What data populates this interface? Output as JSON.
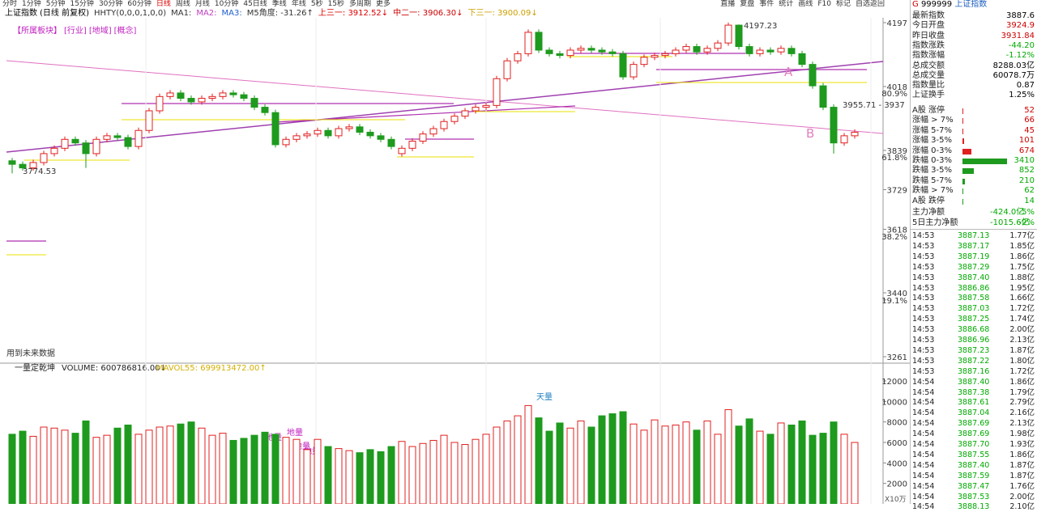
{
  "toolbar": {
    "left": [
      "分时",
      "1分钟",
      "5分钟",
      "15分钟",
      "30分钟",
      "60分钟",
      "日线",
      "周线",
      "月线",
      "10分钟",
      "45日线",
      "季线",
      "年线",
      "5秒",
      "15秒",
      "多周期",
      "更多"
    ],
    "right": [
      "直播",
      "复盘",
      "事件",
      "统计",
      "画线",
      "F10",
      "标记",
      "自选返回"
    ]
  },
  "header": {
    "title": "上证指数",
    "mode": "(日线 前复权)",
    "indicators": [
      "HHTY(0,0,0,1,0,0)",
      "MA1:",
      "MA2:",
      "MA3:",
      "M5角度: -31.26↑",
      "上三一: 3912.52↓",
      "中二一: 3906.30↓",
      "下三一: 3900.09↓"
    ]
  },
  "sector_links": [
    "【所属板块】",
    "[行业]",
    "[地域]",
    "[概念]"
  ],
  "future_note": "用到未来数据",
  "price_chart": {
    "type": "candlestick",
    "up_color": "#e02020",
    "down_color": "#1e9a1e",
    "ylim": [
      3261,
      4197
    ],
    "yticks": [
      4197,
      4018,
      3839,
      3729,
      3618,
      3440,
      3261
    ],
    "pct_ticks": [
      {
        "value": 4000,
        "label": "80.9%"
      },
      {
        "value": 3821,
        "label": "61.8%"
      },
      {
        "value": 3599,
        "label": "38.2%"
      },
      {
        "value": 3420,
        "label": "19.1%"
      }
    ],
    "open": [
      3810,
      3800,
      3790,
      3805,
      3830,
      3845,
      3870,
      3860,
      3830,
      3870,
      3880,
      3875,
      3850,
      3895,
      3950,
      3990,
      4000,
      3985,
      3975,
      3985,
      3990,
      4000,
      3995,
      3985,
      3960,
      3945,
      3855,
      3870,
      3880,
      3885,
      3895,
      3880,
      3900,
      3905,
      3890,
      3880,
      3870,
      3830,
      3845,
      3865,
      3885,
      3900,
      3920,
      3935,
      3950,
      3960,
      3965,
      4040,
      4090,
      4110,
      4170,
      4120,
      4110,
      4105,
      4120,
      4125,
      4120,
      4115,
      4110,
      4045,
      4080,
      4100,
      4105,
      4110,
      4120,
      4130,
      4115,
      4125,
      4140,
      4190,
      4130,
      4110,
      4120,
      4115,
      4125,
      4110,
      4080,
      4020,
      3960,
      3860,
      3880
    ],
    "high": [
      3818,
      3808,
      3813,
      3838,
      3853,
      3878,
      3878,
      3868,
      3878,
      3888,
      3888,
      3883,
      3903,
      3958,
      3998,
      4008,
      4008,
      3993,
      3993,
      3998,
      4008,
      4008,
      4003,
      3993,
      3968,
      3953,
      3878,
      3888,
      3893,
      3903,
      3903,
      3908,
      3913,
      3913,
      3898,
      3888,
      3878,
      3853,
      3873,
      3893,
      3908,
      3928,
      3943,
      3958,
      3968,
      3973,
      4048,
      4098,
      4118,
      4178,
      4178,
      4128,
      4118,
      4128,
      4133,
      4133,
      4128,
      4123,
      4118,
      4088,
      4108,
      4113,
      4118,
      4128,
      4138,
      4138,
      4133,
      4148,
      4197.23,
      4192,
      4138,
      4128,
      4128,
      4133,
      4133,
      4118,
      4088,
      4028,
      3968,
      3888,
      3898
    ],
    "low": [
      3774.53,
      3782,
      3782,
      3797,
      3822,
      3837,
      3852,
      3790,
      3822,
      3862,
      3867,
      3842,
      3842,
      3887,
      3942,
      3982,
      3977,
      3967,
      3967,
      3977,
      3982,
      3987,
      3977,
      3952,
      3937,
      3847,
      3847,
      3862,
      3872,
      3877,
      3872,
      3872,
      3892,
      3882,
      3872,
      3862,
      3842,
      3822,
      3837,
      3857,
      3877,
      3892,
      3912,
      3927,
      3942,
      3952,
      3957,
      4032,
      4082,
      4102,
      4112,
      4102,
      4097,
      4097,
      4112,
      4112,
      4107,
      4102,
      4037,
      4037,
      4072,
      4092,
      4097,
      4102,
      4112,
      4107,
      4107,
      4117,
      4132,
      4122,
      4102,
      4102,
      4107,
      4107,
      4102,
      4072,
      4012,
      3952,
      3830,
      3852,
      3872
    ],
    "close": [
      3800,
      3790,
      3805,
      3830,
      3845,
      3870,
      3860,
      3830,
      3870,
      3880,
      3875,
      3850,
      3895,
      3950,
      3990,
      4000,
      3985,
      3975,
      3985,
      3990,
      4000,
      3995,
      3985,
      3960,
      3945,
      3855,
      3870,
      3880,
      3885,
      3895,
      3880,
      3900,
      3905,
      3890,
      3880,
      3870,
      3850,
      3845,
      3865,
      3885,
      3900,
      3920,
      3935,
      3950,
      3960,
      3965,
      4040,
      4090,
      4110,
      4170,
      4120,
      4110,
      4105,
      4120,
      4125,
      4120,
      4115,
      4110,
      4045,
      4080,
      4100,
      4105,
      4110,
      4120,
      4130,
      4115,
      4125,
      4140,
      4190,
      4130,
      4110,
      4120,
      4115,
      4125,
      4110,
      4080,
      4020,
      3960,
      3860,
      3880,
      3890
    ],
    "annotations": {
      "high": "4197.23",
      "low": "3774.53",
      "range": "3955.71 - 3937",
      "a": "A",
      "b": "B"
    }
  },
  "volume_chart": {
    "type": "bar",
    "title": "一量定乾坤",
    "volume_label": "VOLUME: 600786816.00↓",
    "mavol_label": "MAVOL55: 699913472.00↑",
    "unit": "X10万",
    "ylim": [
      0,
      12000
    ],
    "yticks": [
      2000,
      4000,
      6000,
      8000,
      10000,
      12000
    ],
    "values": [
      6800,
      7100,
      6600,
      7500,
      7400,
      7200,
      6900,
      8100,
      6500,
      6700,
      7400,
      7700,
      6800,
      7200,
      7500,
      7600,
      7800,
      8000,
      7400,
      6700,
      6900,
      6200,
      6400,
      6700,
      7000,
      6800,
      6500,
      6300,
      5300,
      6300,
      5600,
      5400,
      5200,
      5000,
      5300,
      5100,
      5600,
      6100,
      5600,
      5900,
      6200,
      6700,
      6000,
      5800,
      6300,
      6800,
      7500,
      8100,
      8600,
      9600,
      8400,
      7100,
      7900,
      7400,
      8100,
      7500,
      8600,
      8800,
      9000,
      7800,
      7200,
      8200,
      7600,
      7700,
      8000,
      7200,
      8100,
      6800,
      9200,
      7600,
      8300,
      7100,
      6800,
      7900,
      7700,
      8100,
      6700,
      6900,
      8000,
      6800,
      6000
    ],
    "notes": {
      "peak": "天量",
      "troughs": [
        "地量",
        "地量",
        "地量",
        "地量"
      ]
    }
  },
  "sidebar": {
    "code": "G",
    "symbol": "999999",
    "name": "上证指数",
    "stats": [
      [
        "最新指数",
        "3887.6"
      ],
      [
        "今日开盘",
        "3924.9"
      ],
      [
        "昨日收盘",
        "3931.84"
      ],
      [
        "指数涨跌",
        "-44.20"
      ],
      [
        "指数涨幅",
        "-1.12%"
      ],
      [
        "总成交额",
        "8288.03亿"
      ],
      [
        "总成交量",
        "60078.7万"
      ],
      [
        "指数量比",
        "0.87"
      ],
      [
        "上证换手",
        "1.25%"
      ]
    ],
    "up_rows": [
      {
        "name": "A股 涨停",
        "value": 52
      },
      {
        "name": "涨幅 > 7%",
        "value": 66
      },
      {
        "name": "涨幅 5-7%",
        "value": 45
      },
      {
        "name": "涨幅 3-5%",
        "value": 101
      },
      {
        "name": "涨幅 0-3%",
        "value": 674
      }
    ],
    "down_rows": [
      {
        "name": "跌幅 0-3%",
        "value": 3410
      },
      {
        "name": "跌幅 3-5%",
        "value": 852
      },
      {
        "name": "跌幅 5-7%",
        "value": 210
      },
      {
        "name": "跌幅 > 7%",
        "value": 62
      },
      {
        "name": "A股 跌停",
        "value": 14
      }
    ],
    "flows": [
      [
        "主力净额",
        "-424.0亿",
        "-5%"
      ],
      [
        "5日主力净额",
        "-1015.6亿",
        "-2%"
      ]
    ],
    "trades": [
      [
        "14:53",
        "3887.13",
        "1.77亿"
      ],
      [
        "14:53",
        "3887.17",
        "1.85亿"
      ],
      [
        "14:53",
        "3887.19",
        "1.86亿"
      ],
      [
        "14:53",
        "3887.29",
        "1.75亿"
      ],
      [
        "14:53",
        "3887.40",
        "1.88亿"
      ],
      [
        "14:53",
        "3886.86",
        "1.95亿"
      ],
      [
        "14:53",
        "3887.58",
        "1.66亿"
      ],
      [
        "14:53",
        "3887.03",
        "1.72亿"
      ],
      [
        "14:53",
        "3887.25",
        "1.74亿"
      ],
      [
        "14:53",
        "3886.68",
        "2.00亿"
      ],
      [
        "14:53",
        "3886.96",
        "2.13亿"
      ],
      [
        "14:53",
        "3887.23",
        "1.87亿"
      ],
      [
        "14:53",
        "3887.22",
        "1.80亿"
      ],
      [
        "14:53",
        "3887.16",
        "1.72亿"
      ],
      [
        "14:54",
        "3887.40",
        "1.86亿"
      ],
      [
        "14:54",
        "3887.38",
        "1.79亿"
      ],
      [
        "14:54",
        "3887.61",
        "2.79亿"
      ],
      [
        "14:54",
        "3887.04",
        "2.16亿"
      ],
      [
        "14:54",
        "3887.69",
        "2.13亿"
      ],
      [
        "14:54",
        "3887.69",
        "1.98亿"
      ],
      [
        "14:54",
        "3887.70",
        "1.93亿"
      ],
      [
        "14:54",
        "3887.55",
        "1.86亿"
      ],
      [
        "14:54",
        "3887.40",
        "1.87亿"
      ],
      [
        "14:54",
        "3887.59",
        "1.87亿"
      ],
      [
        "14:54",
        "3887.47",
        "1.76亿"
      ],
      [
        "14:54",
        "3887.53",
        "2.00亿"
      ],
      [
        "14:54",
        "3888.13",
        "2.10亿"
      ]
    ]
  }
}
